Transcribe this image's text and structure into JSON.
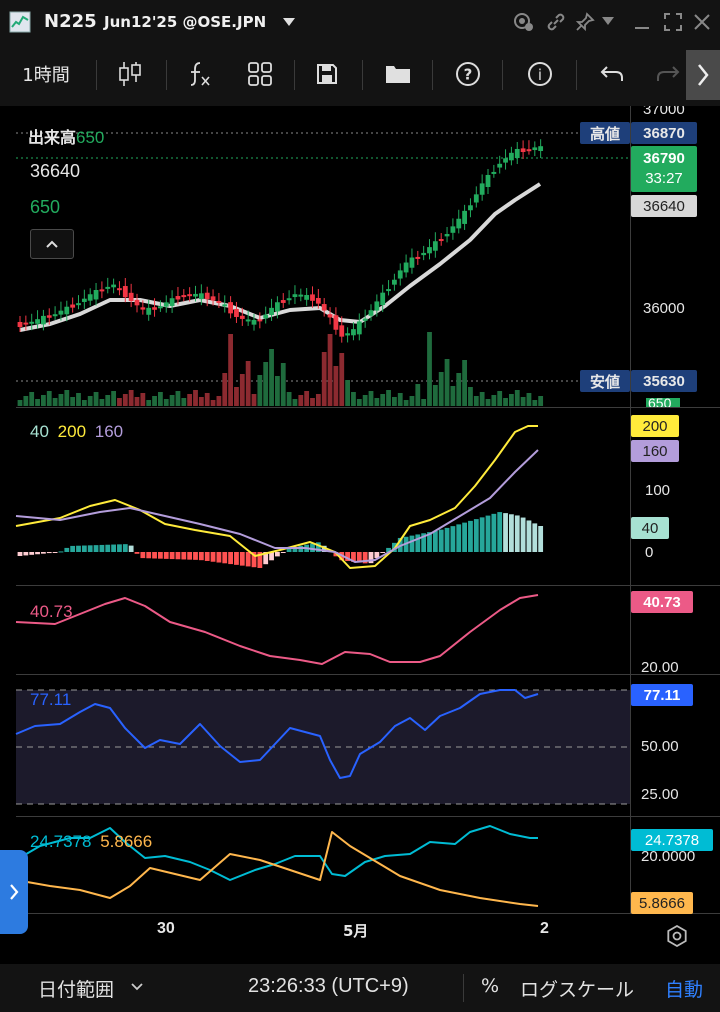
{
  "window": {
    "symbol": "N225",
    "subtitle": "Jun12'25 @OSE.JPN"
  },
  "toolbar": {
    "interval": "1時間"
  },
  "price_pane": {
    "volume_label": "出来高",
    "volume_value": "650",
    "price_value": "36640",
    "volume_value_2": "650",
    "high_label": "高値",
    "high_value": "36870",
    "low_label": "安値",
    "low_value": "35630",
    "axis_37000": "37000",
    "axis_36000": "36000",
    "last_price": "36790",
    "countdown": "33:27",
    "ma_price": "36640",
    "vol_axis": "650"
  },
  "macd_pane": {
    "p1": "40",
    "p2": "200",
    "p3": "160",
    "tag_200": "200",
    "tag_160": "160",
    "tag_40": "40",
    "axis_100": "100",
    "axis_0": "0"
  },
  "pane3": {
    "legend": "40.73",
    "tag": "40.73",
    "axis_20": "20.00"
  },
  "rsi_pane": {
    "legend": "77.11",
    "tag": "77.11",
    "axis_50": "50.00",
    "axis_25": "25.00"
  },
  "dmi_pane": {
    "v1": "24.7378",
    "v2": "5.8666",
    "tag1": "24.7378",
    "tag2": "5.8666",
    "axis_20": "20.0000"
  },
  "xaxis": {
    "l1": "30",
    "l2": "5月",
    "l3": "2"
  },
  "bottom": {
    "date_range": "日付範囲",
    "time": "23:26:33 (UTC+9)",
    "percent": "%",
    "log_scale": "ログスケール",
    "auto": "自動"
  },
  "colors": {
    "up": "#22ab5e",
    "down": "#f23645",
    "ma": "#d9d9d9",
    "yellow": "#ffeb3b",
    "purple": "#b39ddb",
    "pink": "#ec5a87",
    "blue": "#2962ff",
    "cyan": "#00bcd4",
    "orange": "#ffb74d",
    "tag_blue": "#1e3f7a"
  },
  "icons": [
    "app-logo-icon",
    "chevron-down-icon",
    "camera-icon",
    "link-icon",
    "pin-icon",
    "minimize-icon",
    "maximize-icon",
    "close-icon",
    "candle-icon",
    "fx-icon",
    "layout-icon",
    "save-icon",
    "folder-icon",
    "help-icon",
    "info-icon",
    "undo-icon",
    "redo-icon",
    "chevron-right-icon",
    "collapse-up-icon",
    "expand-side-icon",
    "settings-icon"
  ]
}
